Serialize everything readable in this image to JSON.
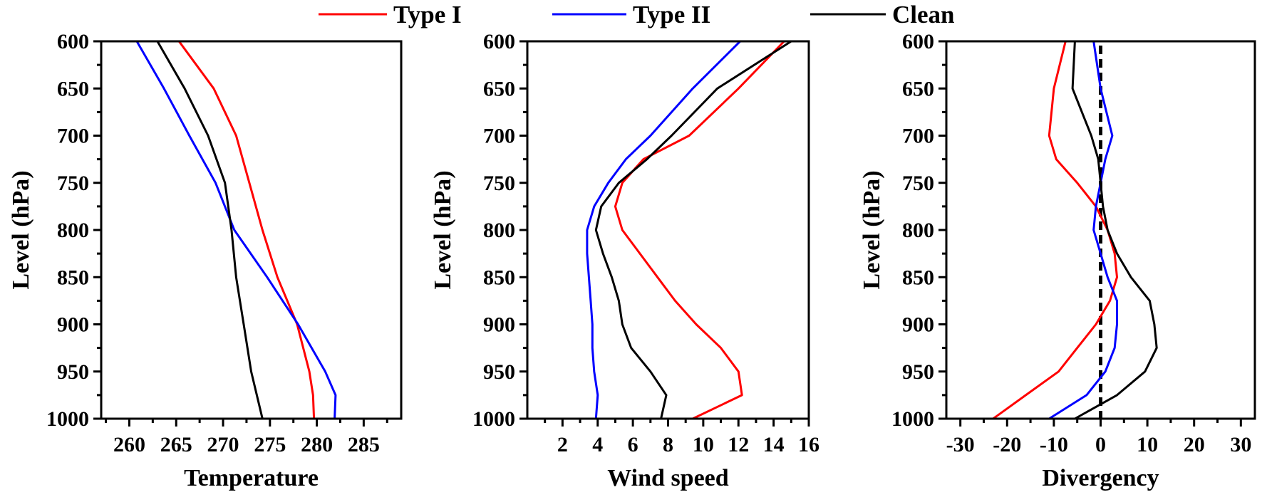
{
  "legend": [
    {
      "label": "Type I",
      "color": "#ff0000"
    },
    {
      "label": "Type II",
      "color": "#0000ff"
    },
    {
      "label": "Clean",
      "color": "#000000"
    }
  ],
  "chart_data": [
    {
      "type": "line",
      "xlabel": "Temperature",
      "ylabel": "Level (hPa)",
      "xlim": [
        257,
        289
      ],
      "ylim": [
        1000,
        600
      ],
      "xticks": [
        260,
        265,
        270,
        275,
        280,
        285
      ],
      "yticks": [
        600,
        650,
        700,
        750,
        800,
        850,
        900,
        950,
        1000
      ],
      "levels": [
        600,
        650,
        700,
        750,
        800,
        850,
        900,
        950,
        975,
        1000
      ],
      "series": [
        {
          "name": "Type I",
          "values": [
            265.3,
            269.0,
            271.4,
            272.8,
            274.2,
            275.8,
            277.9,
            279.2,
            279.6,
            279.7
          ]
        },
        {
          "name": "Type II",
          "values": [
            260.8,
            263.7,
            266.4,
            269.2,
            271.2,
            274.7,
            278.0,
            280.9,
            282.0,
            281.9
          ]
        },
        {
          "name": "Clean",
          "values": [
            263.0,
            265.9,
            268.4,
            270.2,
            270.9,
            271.4,
            272.2,
            273.0,
            273.6,
            274.2
          ]
        }
      ],
      "reference_line": null
    },
    {
      "type": "line",
      "xlabel": "Wind speed",
      "ylabel": "Level (hPa)",
      "xlim": [
        0,
        16
      ],
      "ylim": [
        1000,
        600
      ],
      "xticks": [
        2,
        4,
        6,
        8,
        10,
        12,
        14,
        16
      ],
      "yticks": [
        600,
        650,
        700,
        750,
        800,
        850,
        900,
        950,
        1000
      ],
      "levels": [
        600,
        650,
        700,
        725,
        750,
        775,
        800,
        825,
        850,
        875,
        900,
        925,
        950,
        975,
        1000
      ],
      "series": [
        {
          "name": "Type I",
          "values": [
            14.6,
            12.0,
            9.2,
            6.6,
            5.4,
            5.0,
            5.4,
            6.4,
            7.4,
            8.4,
            9.6,
            11.0,
            12.0,
            12.2,
            9.4
          ]
        },
        {
          "name": "Type II",
          "values": [
            12.1,
            9.4,
            7.0,
            5.6,
            4.6,
            3.8,
            3.4,
            3.4,
            3.5,
            3.6,
            3.7,
            3.7,
            3.8,
            4.0,
            3.9
          ]
        },
        {
          "name": "Clean",
          "values": [
            15.0,
            10.8,
            8.2,
            6.8,
            5.2,
            4.2,
            3.9,
            4.3,
            4.8,
            5.2,
            5.4,
            5.9,
            7.0,
            7.9,
            7.6
          ]
        }
      ],
      "reference_line": null
    },
    {
      "type": "line",
      "xlabel": "Divergency",
      "ylabel": "Level (hPa)",
      "xlim": [
        -33,
        33
      ],
      "ylim": [
        1000,
        600
      ],
      "xticks": [
        -30,
        -20,
        -10,
        0,
        10,
        20,
        30
      ],
      "yticks": [
        600,
        650,
        700,
        750,
        800,
        850,
        900,
        950,
        1000
      ],
      "levels": [
        600,
        650,
        700,
        725,
        750,
        775,
        800,
        825,
        850,
        875,
        900,
        925,
        950,
        975,
        1000
      ],
      "series": [
        {
          "name": "Type I",
          "values": [
            -7.5,
            -10.0,
            -11.0,
            -9.5,
            -5.0,
            -1.0,
            1.5,
            3.0,
            3.5,
            2.0,
            -1.0,
            -5.0,
            -9.0,
            -16.0,
            -23.0
          ]
        },
        {
          "name": "Type II",
          "values": [
            -1.5,
            0.0,
            2.5,
            1.0,
            0.0,
            -1.0,
            -1.5,
            0.0,
            1.5,
            3.5,
            3.5,
            3.0,
            1.0,
            -3.0,
            -11.0
          ]
        },
        {
          "name": "Clean",
          "values": [
            -5.5,
            -6.0,
            -2.0,
            -0.5,
            0.0,
            0.5,
            1.5,
            3.5,
            6.5,
            10.5,
            11.5,
            12.0,
            9.5,
            3.5,
            -5.5
          ]
        }
      ],
      "reference_line": {
        "x": 0,
        "style": "dashed",
        "color": "#000000"
      }
    }
  ]
}
